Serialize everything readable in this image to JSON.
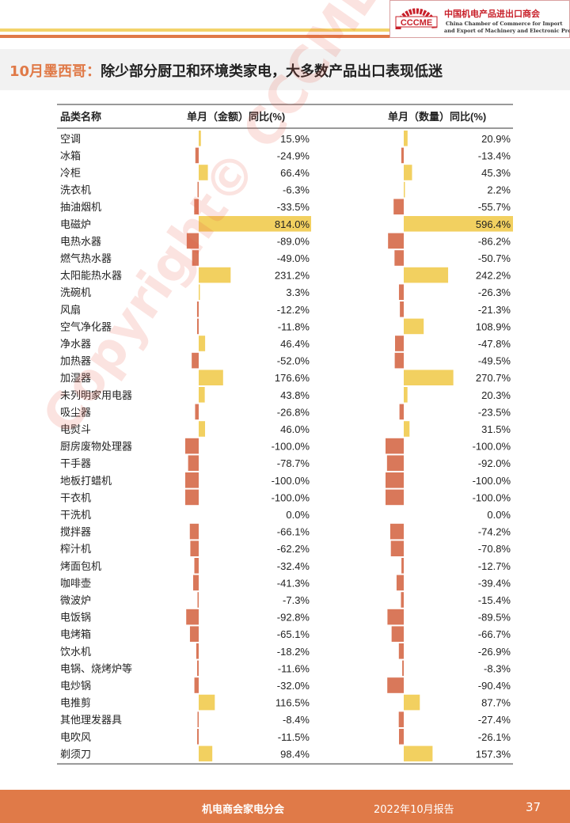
{
  "header": {
    "logo_text": "CCCME",
    "org_cn": "中国机电产品进出口商会",
    "org_en_line1": "China Chamber of Commerce for Import",
    "org_en_line2": "and Export of Machinery and Electronic Products"
  },
  "title": {
    "highlight": "10月墨西哥：",
    "rest": "除少部分厨卫和环境类家电，大多数产品出口表现低迷"
  },
  "watermark": "Copyright© CCCME",
  "footer": {
    "org": "机电商会家电分会",
    "report": "2022年10月报告",
    "page": "37"
  },
  "colors": {
    "positive": "#f2d060",
    "negative": "#d9785a",
    "accent": "#e07a48"
  },
  "chart_data": {
    "type": "table",
    "columns": [
      "品类名称",
      "单月（金额）同比(%)",
      "单月（数量）同比(%)"
    ],
    "categories": [
      "空调",
      "冰箱",
      "冷柜",
      "洗衣机",
      "抽油烟机",
      "电磁炉",
      "电热水器",
      "燃气热水器",
      "太阳能热水器",
      "洗碗机",
      "风扇",
      "空气净化器",
      "净水器",
      "加热器",
      "加湿器",
      "未列明家用电器",
      "吸尘器",
      "电熨斗",
      "厨房废物处理器",
      "干手器",
      "地板打蜡机",
      "干衣机",
      "干洗机",
      "搅拌器",
      "榨汁机",
      "烤面包机",
      "咖啡壶",
      "微波炉",
      "电饭锅",
      "电烤箱",
      "饮水机",
      "电锅、烧烤炉等",
      "电炒锅",
      "电推剪",
      "其他理发器具",
      "电吹风",
      "剃须刀"
    ],
    "series": [
      {
        "name": "单月（金额）同比(%)",
        "values": [
          15.9,
          -24.9,
          66.4,
          -6.3,
          -33.5,
          814.0,
          -89.0,
          -49.0,
          231.2,
          3.3,
          -12.2,
          -11.8,
          46.4,
          -52.0,
          176.6,
          43.8,
          -26.8,
          46.0,
          -100.0,
          -78.7,
          -100.0,
          -100.0,
          0.0,
          -66.1,
          -62.2,
          -32.4,
          -41.3,
          -7.3,
          -92.8,
          -65.1,
          -18.2,
          -11.6,
          -32.0,
          116.5,
          -8.4,
          -11.5,
          98.4
        ],
        "labels": [
          "15.9%",
          "-24.9%",
          "66.4%",
          "-6.3%",
          "-33.5%",
          "814.0%",
          "-89.0%",
          "-49.0%",
          "231.2%",
          "3.3%",
          "-12.2%",
          "-11.8%",
          "46.4%",
          "-52.0%",
          "176.6%",
          "43.8%",
          "-26.8%",
          "46.0%",
          "-100.0%",
          "-78.7%",
          "-100.0%",
          "-100.0%",
          "0.0%",
          "-66.1%",
          "-62.2%",
          "-32.4%",
          "-41.3%",
          "-7.3%",
          "-92.8%",
          "-65.1%",
          "-18.2%",
          "-11.6%",
          "-32.0%",
          "116.5%",
          "-8.4%",
          "-11.5%",
          "98.4%"
        ]
      },
      {
        "name": "单月（数量）同比(%)",
        "values": [
          20.9,
          -13.4,
          45.3,
          2.2,
          -55.7,
          596.4,
          -86.2,
          -50.7,
          242.2,
          -26.3,
          -21.3,
          108.9,
          -47.8,
          -49.5,
          270.7,
          20.3,
          -23.5,
          31.5,
          -100.0,
          -92.0,
          -100.0,
          -100.0,
          0.0,
          -74.2,
          -70.8,
          -12.7,
          -39.4,
          -15.4,
          -89.5,
          -66.7,
          -26.9,
          -8.3,
          -90.4,
          87.7,
          -27.4,
          -26.1,
          157.3
        ],
        "labels": [
          "20.9%",
          "-13.4%",
          "45.3%",
          "2.2%",
          "-55.7%",
          "596.4%",
          "-86.2%",
          "-50.7%",
          "242.2%",
          "-26.3%",
          "-21.3%",
          "108.9%",
          "-47.8%",
          "-49.5%",
          "270.7%",
          "20.3%",
          "-23.5%",
          "31.5%",
          "-100.0%",
          "-92.0%",
          "-100.0%",
          "-100.0%",
          "0.0%",
          "-74.2%",
          "-70.8%",
          "-12.7%",
          "-39.4%",
          "-15.4%",
          "-89.5%",
          "-66.7%",
          "-26.9%",
          "-8.3%",
          "-90.4%",
          "87.7%",
          "-27.4%",
          "-26.1%",
          "157.3%"
        ]
      }
    ]
  }
}
